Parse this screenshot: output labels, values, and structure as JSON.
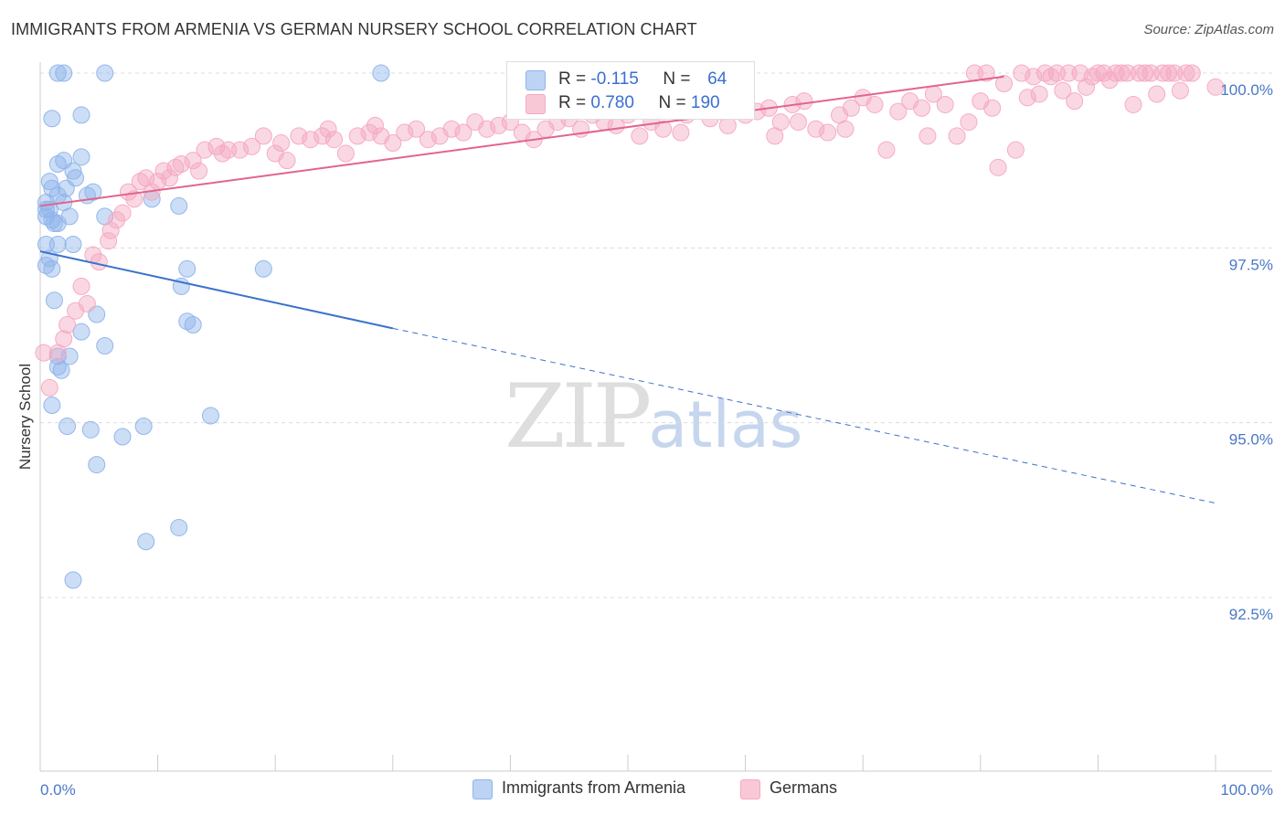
{
  "header": {
    "title": "IMMIGRANTS FROM ARMENIA VS GERMAN NURSERY SCHOOL CORRELATION CHART",
    "source": "Source: ZipAtlas.com"
  },
  "watermark": {
    "main": "ZIP",
    "sub": "atlas"
  },
  "legend": {
    "r_label": "R =",
    "n_label": "N =",
    "rows": [
      {
        "name": "Immigrants from Armenia",
        "r": "-0.115",
        "n": "64",
        "color": "#8fb4ea"
      },
      {
        "name": "Germans",
        "r": "0.780",
        "n": "190",
        "color": "#f4a9c0"
      }
    ]
  },
  "bottom_legend": {
    "series1": "Immigrants from Armenia",
    "series2": "Germans"
  },
  "chart_data": {
    "type": "scatter",
    "title": "IMMIGRANTS FROM ARMENIA VS GERMAN NURSERY SCHOOL CORRELATION CHART",
    "xlabel": "",
    "ylabel": "Nursery School",
    "xlim": [
      0,
      100
    ],
    "ylim": [
      90.0,
      100.2
    ],
    "y_ticks": [
      {
        "value": 100.0,
        "label": "100.0%"
      },
      {
        "value": 97.5,
        "label": "97.5%"
      },
      {
        "value": 95.0,
        "label": "95.0%"
      },
      {
        "value": 92.5,
        "label": "92.5%"
      }
    ],
    "x_ticks": [
      {
        "value": 0,
        "label": "0.0%"
      },
      {
        "value": 100,
        "label": "100.0%"
      }
    ],
    "series": [
      {
        "name": "Immigrants from Armenia",
        "color": "#8fb4ea",
        "line_color": "#3a73cc",
        "r": -0.115,
        "n": 64,
        "trend": {
          "x0": 0,
          "y0": 97.45,
          "x1": 30,
          "y1": 96.35,
          "dash_to_x": 100,
          "dash_to_y": 93.85
        },
        "points": [
          [
            1.5,
            100.0
          ],
          [
            2.0,
            100.0
          ],
          [
            5.5,
            100.0
          ],
          [
            29.0,
            100.0
          ],
          [
            1.0,
            99.35
          ],
          [
            3.5,
            99.4
          ],
          [
            1.5,
            98.7
          ],
          [
            2.0,
            98.75
          ],
          [
            3.5,
            98.8
          ],
          [
            2.8,
            98.6
          ],
          [
            3.0,
            98.5
          ],
          [
            0.8,
            98.45
          ],
          [
            1.0,
            98.35
          ],
          [
            2.2,
            98.35
          ],
          [
            4.5,
            98.3
          ],
          [
            1.5,
            98.25
          ],
          [
            4.0,
            98.25
          ],
          [
            0.5,
            98.15
          ],
          [
            2.0,
            98.15
          ],
          [
            0.5,
            98.05
          ],
          [
            0.8,
            98.05
          ],
          [
            0.5,
            97.95
          ],
          [
            1.0,
            97.9
          ],
          [
            2.5,
            97.95
          ],
          [
            5.5,
            97.95
          ],
          [
            1.2,
            97.85
          ],
          [
            1.5,
            97.85
          ],
          [
            9.5,
            98.2
          ],
          [
            11.8,
            98.1
          ],
          [
            0.5,
            97.55
          ],
          [
            1.5,
            97.55
          ],
          [
            2.8,
            97.55
          ],
          [
            0.8,
            97.35
          ],
          [
            0.5,
            97.25
          ],
          [
            1.0,
            97.2
          ],
          [
            12.5,
            97.2
          ],
          [
            19.0,
            97.2
          ],
          [
            12.0,
            96.95
          ],
          [
            1.2,
            96.75
          ],
          [
            4.8,
            96.55
          ],
          [
            12.5,
            96.45
          ],
          [
            13.0,
            96.4
          ],
          [
            3.5,
            96.3
          ],
          [
            5.5,
            96.1
          ],
          [
            1.5,
            95.95
          ],
          [
            2.5,
            95.95
          ],
          [
            1.5,
            95.8
          ],
          [
            1.8,
            95.75
          ],
          [
            1.0,
            95.25
          ],
          [
            14.5,
            95.1
          ],
          [
            2.3,
            94.95
          ],
          [
            8.8,
            94.95
          ],
          [
            4.3,
            94.9
          ],
          [
            7.0,
            94.8
          ],
          [
            4.8,
            94.4
          ],
          [
            11.8,
            93.5
          ],
          [
            9.0,
            93.3
          ],
          [
            2.8,
            92.75
          ]
        ]
      },
      {
        "name": "Germans",
        "color": "#f4a9c0",
        "line_color": "#e2648f",
        "r": 0.78,
        "n": 190,
        "trend": {
          "x0": 0,
          "y0": 98.1,
          "x1": 82,
          "y1": 99.95
        },
        "points": [
          [
            0.3,
            96.0
          ],
          [
            0.8,
            95.5
          ],
          [
            1.5,
            96.0
          ],
          [
            2.0,
            96.2
          ],
          [
            2.3,
            96.4
          ],
          [
            3.0,
            96.6
          ],
          [
            3.5,
            96.95
          ],
          [
            4.0,
            96.7
          ],
          [
            4.5,
            97.4
          ],
          [
            5.0,
            97.3
          ],
          [
            5.8,
            97.6
          ],
          [
            6.0,
            97.75
          ],
          [
            6.5,
            97.9
          ],
          [
            7.0,
            98.0
          ],
          [
            7.5,
            98.3
          ],
          [
            8.0,
            98.2
          ],
          [
            8.5,
            98.45
          ],
          [
            9.0,
            98.5
          ],
          [
            9.5,
            98.3
          ],
          [
            10.0,
            98.45
          ],
          [
            10.5,
            98.6
          ],
          [
            11.0,
            98.5
          ],
          [
            11.5,
            98.65
          ],
          [
            12.0,
            98.7
          ],
          [
            13.0,
            98.75
          ],
          [
            13.5,
            98.6
          ],
          [
            14.0,
            98.9
          ],
          [
            15.0,
            98.95
          ],
          [
            15.5,
            98.85
          ],
          [
            16.0,
            98.9
          ],
          [
            17.0,
            98.9
          ],
          [
            18.0,
            98.95
          ],
          [
            19.0,
            99.1
          ],
          [
            20.0,
            98.85
          ],
          [
            20.5,
            99.0
          ],
          [
            21.0,
            98.75
          ],
          [
            22.0,
            99.1
          ],
          [
            23.0,
            99.05
          ],
          [
            24.0,
            99.1
          ],
          [
            24.5,
            99.2
          ],
          [
            25.0,
            99.05
          ],
          [
            26.0,
            98.85
          ],
          [
            27.0,
            99.1
          ],
          [
            28.0,
            99.15
          ],
          [
            28.5,
            99.25
          ],
          [
            29.0,
            99.1
          ],
          [
            30.0,
            99.0
          ],
          [
            31.0,
            99.15
          ],
          [
            32.0,
            99.2
          ],
          [
            33.0,
            99.05
          ],
          [
            34.0,
            99.1
          ],
          [
            35.0,
            99.2
          ],
          [
            36.0,
            99.15
          ],
          [
            37.0,
            99.3
          ],
          [
            38.0,
            99.2
          ],
          [
            39.0,
            99.25
          ],
          [
            40.0,
            99.3
          ],
          [
            41.0,
            99.15
          ],
          [
            42.0,
            99.05
          ],
          [
            43.0,
            99.2
          ],
          [
            44.0,
            99.3
          ],
          [
            45.0,
            99.35
          ],
          [
            46.0,
            99.2
          ],
          [
            47.0,
            99.4
          ],
          [
            48.0,
            99.3
          ],
          [
            49.0,
            99.25
          ],
          [
            50.0,
            99.4
          ],
          [
            51.0,
            99.1
          ],
          [
            52.0,
            99.3
          ],
          [
            53.0,
            99.2
          ],
          [
            54.0,
            99.55
          ],
          [
            55.0,
            99.4
          ],
          [
            56.0,
            99.5
          ],
          [
            57.0,
            99.35
          ],
          [
            58.0,
            99.45
          ],
          [
            59.0,
            99.6
          ],
          [
            60.0,
            99.4
          ],
          [
            61.0,
            99.45
          ],
          [
            62.0,
            99.5
          ],
          [
            63.0,
            99.3
          ],
          [
            64.0,
            99.55
          ],
          [
            65.0,
            99.6
          ],
          [
            66.0,
            99.2
          ],
          [
            67.0,
            99.15
          ],
          [
            68.0,
            99.4
          ],
          [
            69.0,
            99.5
          ],
          [
            70.0,
            99.65
          ],
          [
            71.0,
            99.55
          ],
          [
            72.0,
            98.9
          ],
          [
            73.0,
            99.45
          ],
          [
            74.0,
            99.6
          ],
          [
            75.0,
            99.5
          ],
          [
            76.0,
            99.7
          ],
          [
            77.0,
            99.55
          ],
          [
            78.0,
            99.1
          ],
          [
            79.0,
            99.3
          ],
          [
            80.0,
            99.6
          ],
          [
            81.0,
            99.5
          ],
          [
            82.0,
            99.85
          ],
          [
            83.0,
            98.9
          ],
          [
            84.0,
            99.65
          ],
          [
            85.0,
            99.7
          ],
          [
            86.0,
            99.95
          ],
          [
            87.0,
            99.75
          ],
          [
            88.0,
            99.6
          ],
          [
            89.0,
            99.8
          ],
          [
            90.0,
            100.0
          ],
          [
            91.0,
            99.9
          ],
          [
            92.0,
            100.0
          ],
          [
            93.0,
            99.55
          ],
          [
            94.0,
            100.0
          ],
          [
            95.0,
            99.7
          ],
          [
            96.0,
            100.0
          ],
          [
            97.0,
            99.75
          ],
          [
            98.0,
            100.0
          ],
          [
            79.5,
            100.0
          ],
          [
            80.5,
            100.0
          ],
          [
            83.5,
            100.0
          ],
          [
            85.5,
            100.0
          ],
          [
            87.5,
            100.0
          ],
          [
            88.5,
            100.0
          ],
          [
            89.5,
            99.95
          ],
          [
            90.5,
            100.0
          ],
          [
            91.5,
            100.0
          ],
          [
            92.5,
            100.0
          ],
          [
            93.5,
            100.0
          ],
          [
            94.5,
            100.0
          ],
          [
            95.5,
            100.0
          ],
          [
            96.5,
            100.0
          ],
          [
            97.5,
            100.0
          ],
          [
            84.5,
            99.95
          ],
          [
            86.5,
            100.0
          ],
          [
            100.0,
            99.8
          ],
          [
            81.5,
            98.65
          ],
          [
            75.5,
            99.1
          ],
          [
            68.5,
            99.2
          ],
          [
            64.5,
            99.3
          ],
          [
            62.5,
            99.1
          ],
          [
            58.5,
            99.25
          ],
          [
            54.5,
            99.15
          ]
        ]
      }
    ]
  }
}
